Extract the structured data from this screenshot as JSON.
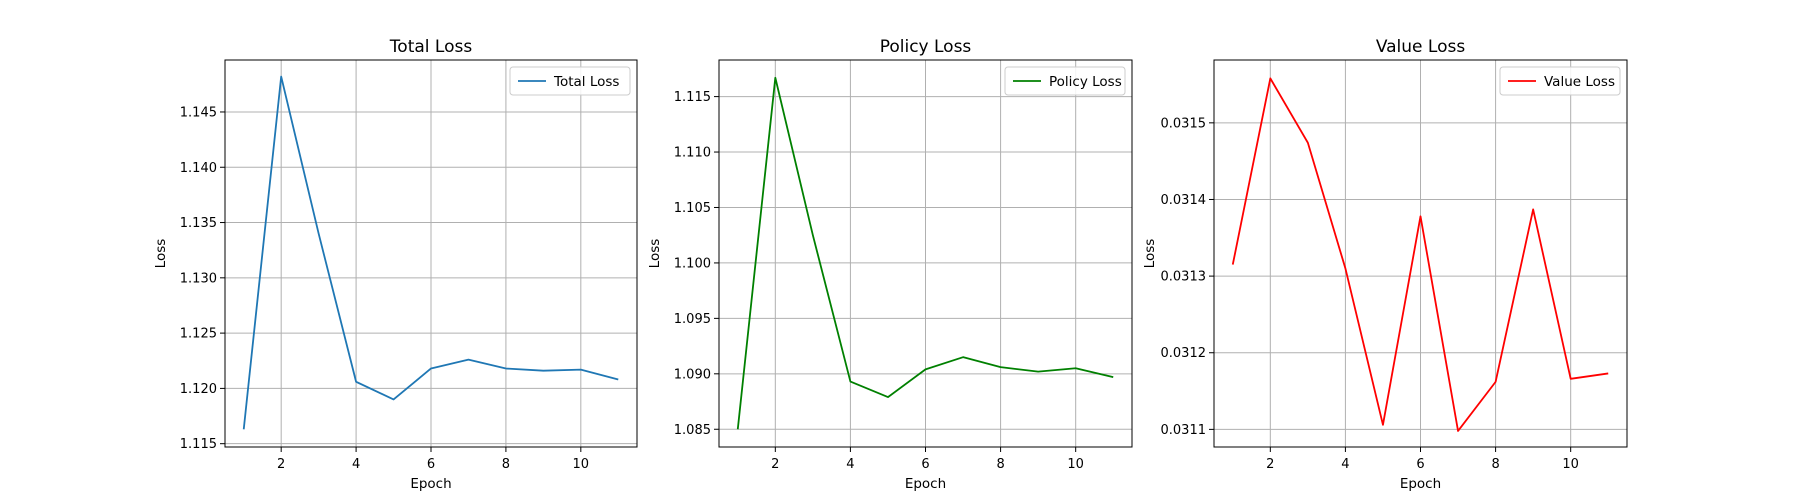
{
  "chart_data": [
    {
      "type": "line",
      "title": "Total Loss",
      "xlabel": "Epoch",
      "ylabel": "Loss",
      "xlim": [
        0.5,
        11.5
      ],
      "ylim": [
        1.1147,
        1.1497
      ],
      "xticks": [
        2,
        4,
        6,
        8,
        10
      ],
      "xtick_labels": [
        "2",
        "4",
        "6",
        "8",
        "10"
      ],
      "yticks": [
        1.115,
        1.12,
        1.125,
        1.13,
        1.135,
        1.14,
        1.145
      ],
      "ytick_labels": [
        "1.115",
        "1.120",
        "1.125",
        "1.130",
        "1.135",
        "1.140",
        "1.145"
      ],
      "grid": true,
      "legend": "upper-right",
      "series": [
        {
          "name": "Total Loss",
          "color": "#1f77b4",
          "x": [
            1,
            2,
            3,
            4,
            5,
            6,
            7,
            8,
            9,
            10,
            11
          ],
          "y": [
            1.1163,
            1.1482,
            1.134,
            1.1206,
            1.119,
            1.1218,
            1.1226,
            1.1218,
            1.1216,
            1.1217,
            1.1208
          ]
        }
      ]
    },
    {
      "type": "line",
      "title": "Policy Loss",
      "xlabel": "Epoch",
      "ylabel": "Loss",
      "xlim": [
        0.5,
        11.5
      ],
      "ylim": [
        1.0834,
        1.1183
      ],
      "xticks": [
        2,
        4,
        6,
        8,
        10
      ],
      "xtick_labels": [
        "2",
        "4",
        "6",
        "8",
        "10"
      ],
      "yticks": [
        1.085,
        1.09,
        1.095,
        1.1,
        1.105,
        1.11,
        1.115
      ],
      "ytick_labels": [
        "1.085",
        "1.090",
        "1.095",
        "1.100",
        "1.105",
        "1.110",
        "1.115"
      ],
      "grid": true,
      "legend": "upper-right",
      "series": [
        {
          "name": "Policy Loss",
          "color": "#008000",
          "x": [
            1,
            2,
            3,
            4,
            5,
            6,
            7,
            8,
            9,
            10,
            11
          ],
          "y": [
            1.085,
            1.1167,
            1.1025,
            1.0893,
            1.0879,
            1.0904,
            1.0915,
            1.0906,
            1.0902,
            1.0905,
            1.0897
          ]
        }
      ]
    },
    {
      "type": "line",
      "title": "Value Loss",
      "xlabel": "Epoch",
      "ylabel": "Loss",
      "xlim": [
        0.5,
        11.5
      ],
      "ylim": [
        0.031077,
        0.031582
      ],
      "xticks": [
        2,
        4,
        6,
        8,
        10
      ],
      "xtick_labels": [
        "2",
        "4",
        "6",
        "8",
        "10"
      ],
      "yticks": [
        0.0311,
        0.0312,
        0.0313,
        0.0314,
        0.0315
      ],
      "ytick_labels": [
        "0.0311",
        "0.0312",
        "0.0313",
        "0.0314",
        "0.0315"
      ],
      "grid": true,
      "legend": "upper-right",
      "series": [
        {
          "name": "Value Loss",
          "color": "#ff0000",
          "x": [
            1,
            2,
            3,
            4,
            5,
            6,
            7,
            8,
            9,
            10,
            11
          ],
          "y": [
            0.031315,
            0.031558,
            0.031474,
            0.03131,
            0.031106,
            0.031378,
            0.031098,
            0.031162,
            0.031387,
            0.031166,
            0.031173
          ]
        }
      ]
    }
  ]
}
